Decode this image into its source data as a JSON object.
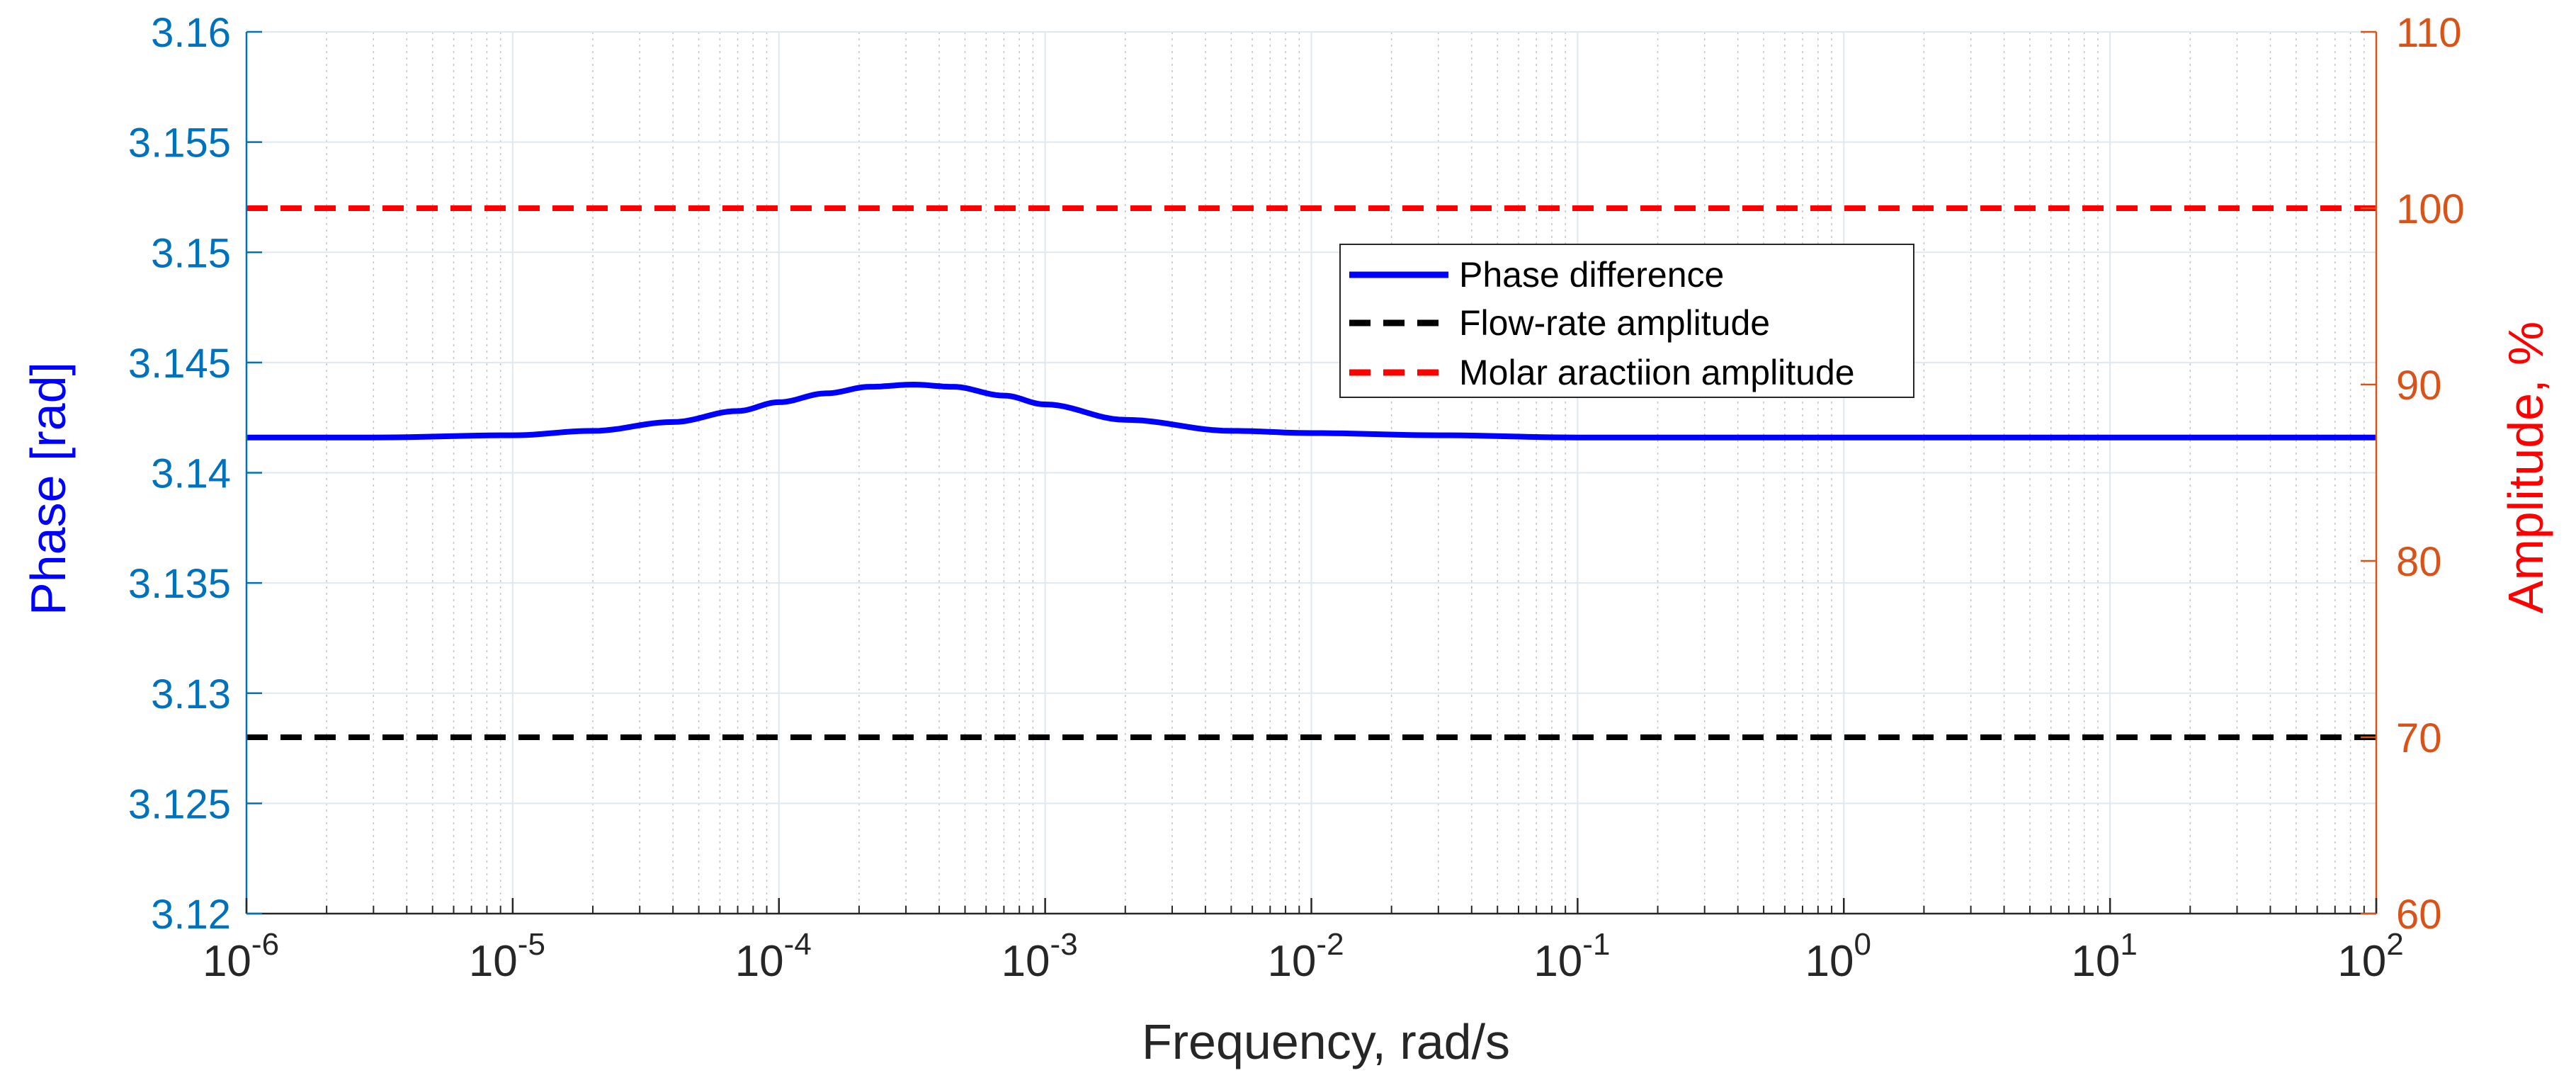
{
  "chart_data": {
    "type": "line",
    "title": "",
    "xlabel": "Frequency, rad/s",
    "ylabel_left": "Phase [rad]",
    "ylabel_right": "Amplitude, %",
    "x_scale": "log",
    "xlim": [
      1e-06,
      100
    ],
    "ylim_left": [
      3.12,
      3.16
    ],
    "ylim_right": [
      60,
      110
    ],
    "grid": true,
    "x_ticks": [
      {
        "base": "10",
        "exp": "-6"
      },
      {
        "base": "10",
        "exp": "-5"
      },
      {
        "base": "10",
        "exp": "-4"
      },
      {
        "base": "10",
        "exp": "-3"
      },
      {
        "base": "10",
        "exp": "-2"
      },
      {
        "base": "10",
        "exp": "-1"
      },
      {
        "base": "10",
        "exp": "0"
      },
      {
        "base": "10",
        "exp": "1"
      },
      {
        "base": "10",
        "exp": "2"
      }
    ],
    "y_ticks_left": [
      "3.12",
      "3.125",
      "3.13",
      "3.135",
      "3.14",
      "3.145",
      "3.15",
      "3.155",
      "3.16"
    ],
    "y_ticks_right": [
      "60",
      "70",
      "80",
      "90",
      "100",
      "110"
    ],
    "legend_position": "upper-right-center",
    "series": [
      {
        "name": "Phase difference",
        "axis": "left",
        "color": "#0000ff",
        "style": "solid",
        "x": [
          1e-06,
          3e-06,
          1e-05,
          2e-05,
          4e-05,
          7e-05,
          0.0001,
          0.00015,
          0.00022,
          0.00032,
          0.00045,
          0.0007,
          0.001,
          0.002,
          0.005,
          0.01,
          0.03,
          0.1,
          1,
          10,
          100
        ],
        "values": [
          3.1416,
          3.1416,
          3.1417,
          3.1419,
          3.1423,
          3.1428,
          3.1432,
          3.1436,
          3.1439,
          3.144,
          3.1439,
          3.1435,
          3.1431,
          3.1424,
          3.1419,
          3.1418,
          3.1417,
          3.1416,
          3.1416,
          3.1416,
          3.1416
        ]
      },
      {
        "name": "Flow-rate amplitude",
        "axis": "right",
        "color": "#000000",
        "style": "dashed",
        "x": [
          1e-06,
          100
        ],
        "values": [
          70,
          70
        ]
      },
      {
        "name": "Molar aractiion amplitude",
        "axis": "right",
        "color": "#ff0000",
        "style": "dashed",
        "x": [
          1e-06,
          100
        ],
        "values": [
          100,
          100
        ]
      }
    ],
    "colors": {
      "left_axis": "#0072bd",
      "right_axis": "#d95319",
      "left_label": "#0000ff",
      "right_label": "#ff0000",
      "xlabel": "#262626",
      "grid": "#dfe8f0",
      "minor_grid": "#bfc5cc"
    }
  }
}
